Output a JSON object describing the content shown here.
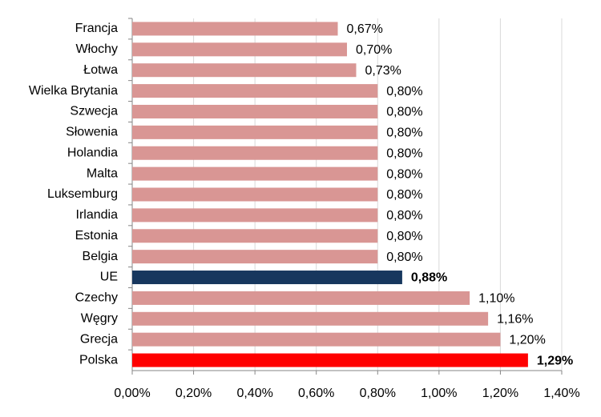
{
  "chart_data": {
    "type": "bar",
    "orientation": "horizontal",
    "categories": [
      "Francja",
      "Włochy",
      "Łotwa",
      "Wielka Brytania",
      "Szwecja",
      "Słowenia",
      "Holandia",
      "Malta",
      "Luksemburg",
      "Irlandia",
      "Estonia",
      "Belgia",
      "UE",
      "Czechy",
      "Węgry",
      "Grecja",
      "Polska"
    ],
    "values": [
      0.67,
      0.7,
      0.73,
      0.8,
      0.8,
      0.8,
      0.8,
      0.8,
      0.8,
      0.8,
      0.8,
      0.8,
      0.88,
      1.1,
      1.16,
      1.2,
      1.29
    ],
    "value_labels": [
      "0,67%",
      "0,70%",
      "0,73%",
      "0,80%",
      "0,80%",
      "0,80%",
      "0,80%",
      "0,80%",
      "0,80%",
      "0,80%",
      "0,80%",
      "0,80%",
      "0,88%",
      "1,10%",
      "1,16%",
      "1,20%",
      "1,29%"
    ],
    "colors": [
      "#d99694",
      "#d99694",
      "#d99694",
      "#d99694",
      "#d99694",
      "#d99694",
      "#d99694",
      "#d99694",
      "#d99694",
      "#d99694",
      "#d99694",
      "#d99694",
      "#17375e",
      "#d99694",
      "#d99694",
      "#d99694",
      "#ff0000"
    ],
    "value_label_bold": [
      false,
      false,
      false,
      false,
      false,
      false,
      false,
      false,
      false,
      false,
      false,
      false,
      true,
      false,
      false,
      false,
      true
    ],
    "xlim": [
      0,
      1.4
    ],
    "xticks": [
      {
        "value": 0,
        "label": "0,00%"
      },
      {
        "value": 0.2,
        "label": "0,20%"
      },
      {
        "value": 0.4,
        "label": "0,40%"
      },
      {
        "value": 0.6,
        "label": "0,60%"
      },
      {
        "value": 0.8,
        "label": "0,80%"
      },
      {
        "value": 1.0,
        "label": "1,00%"
      },
      {
        "value": 1.2,
        "label": "1,20%"
      },
      {
        "value": 1.4,
        "label": "1,40%"
      }
    ],
    "grid": true
  }
}
